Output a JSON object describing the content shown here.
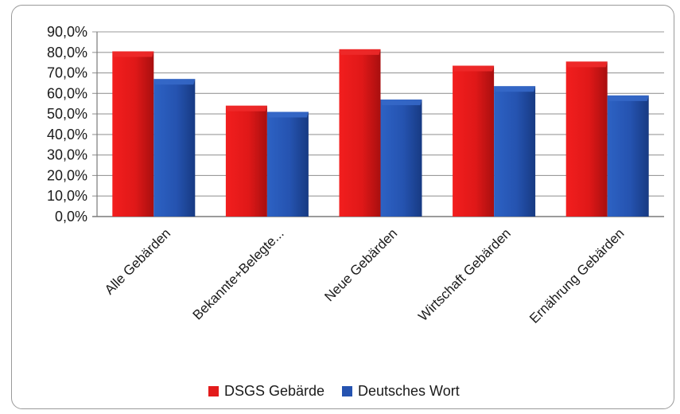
{
  "chart_data": {
    "type": "bar",
    "categories": [
      "Alle Gebärden",
      "Bekannte+Belegte...",
      "Neue Gebärden",
      "Wirtschaft Gebärden",
      "Ernährung Gebärden"
    ],
    "series": [
      {
        "name": "DSGS Gebärde",
        "color": "#e31b1b",
        "values": [
          80.5,
          54.0,
          81.5,
          73.5,
          75.5
        ]
      },
      {
        "name": "Deutsches Wort",
        "color": "#2553b0",
        "values": [
          67.0,
          51.0,
          57.0,
          63.5,
          59.0
        ]
      }
    ],
    "ylim": [
      0,
      90
    ],
    "yticks": [
      "0,0%",
      "10,0%",
      "20,0%",
      "30,0%",
      "40,0%",
      "50,0%",
      "60,0%",
      "70,0%",
      "80,0%",
      "90,0%"
    ],
    "grid": true,
    "legend_position": "bottom",
    "title": "",
    "xlabel": "",
    "ylabel": ""
  }
}
